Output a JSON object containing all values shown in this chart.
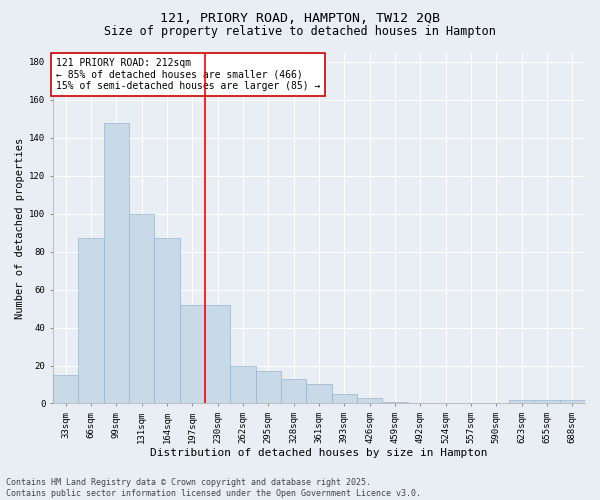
{
  "title1": "121, PRIORY ROAD, HAMPTON, TW12 2QB",
  "title2": "Size of property relative to detached houses in Hampton",
  "xlabel": "Distribution of detached houses by size in Hampton",
  "ylabel": "Number of detached properties",
  "categories": [
    "33sqm",
    "66sqm",
    "99sqm",
    "131sqm",
    "164sqm",
    "197sqm",
    "230sqm",
    "262sqm",
    "295sqm",
    "328sqm",
    "361sqm",
    "393sqm",
    "426sqm",
    "459sqm",
    "492sqm",
    "524sqm",
    "557sqm",
    "590sqm",
    "623sqm",
    "655sqm",
    "688sqm"
  ],
  "values": [
    15,
    87,
    148,
    100,
    87,
    52,
    52,
    20,
    17,
    13,
    10,
    5,
    3,
    1,
    0,
    0,
    0,
    0,
    2,
    2,
    2
  ],
  "bar_color": "#c8d9e8",
  "bar_edge_color": "#9ab4cc",
  "annotation_text": "121 PRIORY ROAD: 212sqm\n← 85% of detached houses are smaller (466)\n15% of semi-detached houses are larger (85) →",
  "annotation_box_color": "#ffffff",
  "annotation_box_edge": "#cc0000",
  "ylim": [
    0,
    185
  ],
  "yticks": [
    0,
    20,
    40,
    60,
    80,
    100,
    120,
    140,
    160,
    180
  ],
  "background_color": "#e8eef4",
  "plot_bg_color": "#e8eef4",
  "footer": "Contains HM Land Registry data © Crown copyright and database right 2025.\nContains public sector information licensed under the Open Government Licence v3.0.",
  "title1_fontsize": 9.5,
  "title2_fontsize": 8.5,
  "xlabel_fontsize": 8,
  "ylabel_fontsize": 7.5,
  "tick_fontsize": 6.5,
  "annotation_fontsize": 7,
  "footer_fontsize": 6
}
